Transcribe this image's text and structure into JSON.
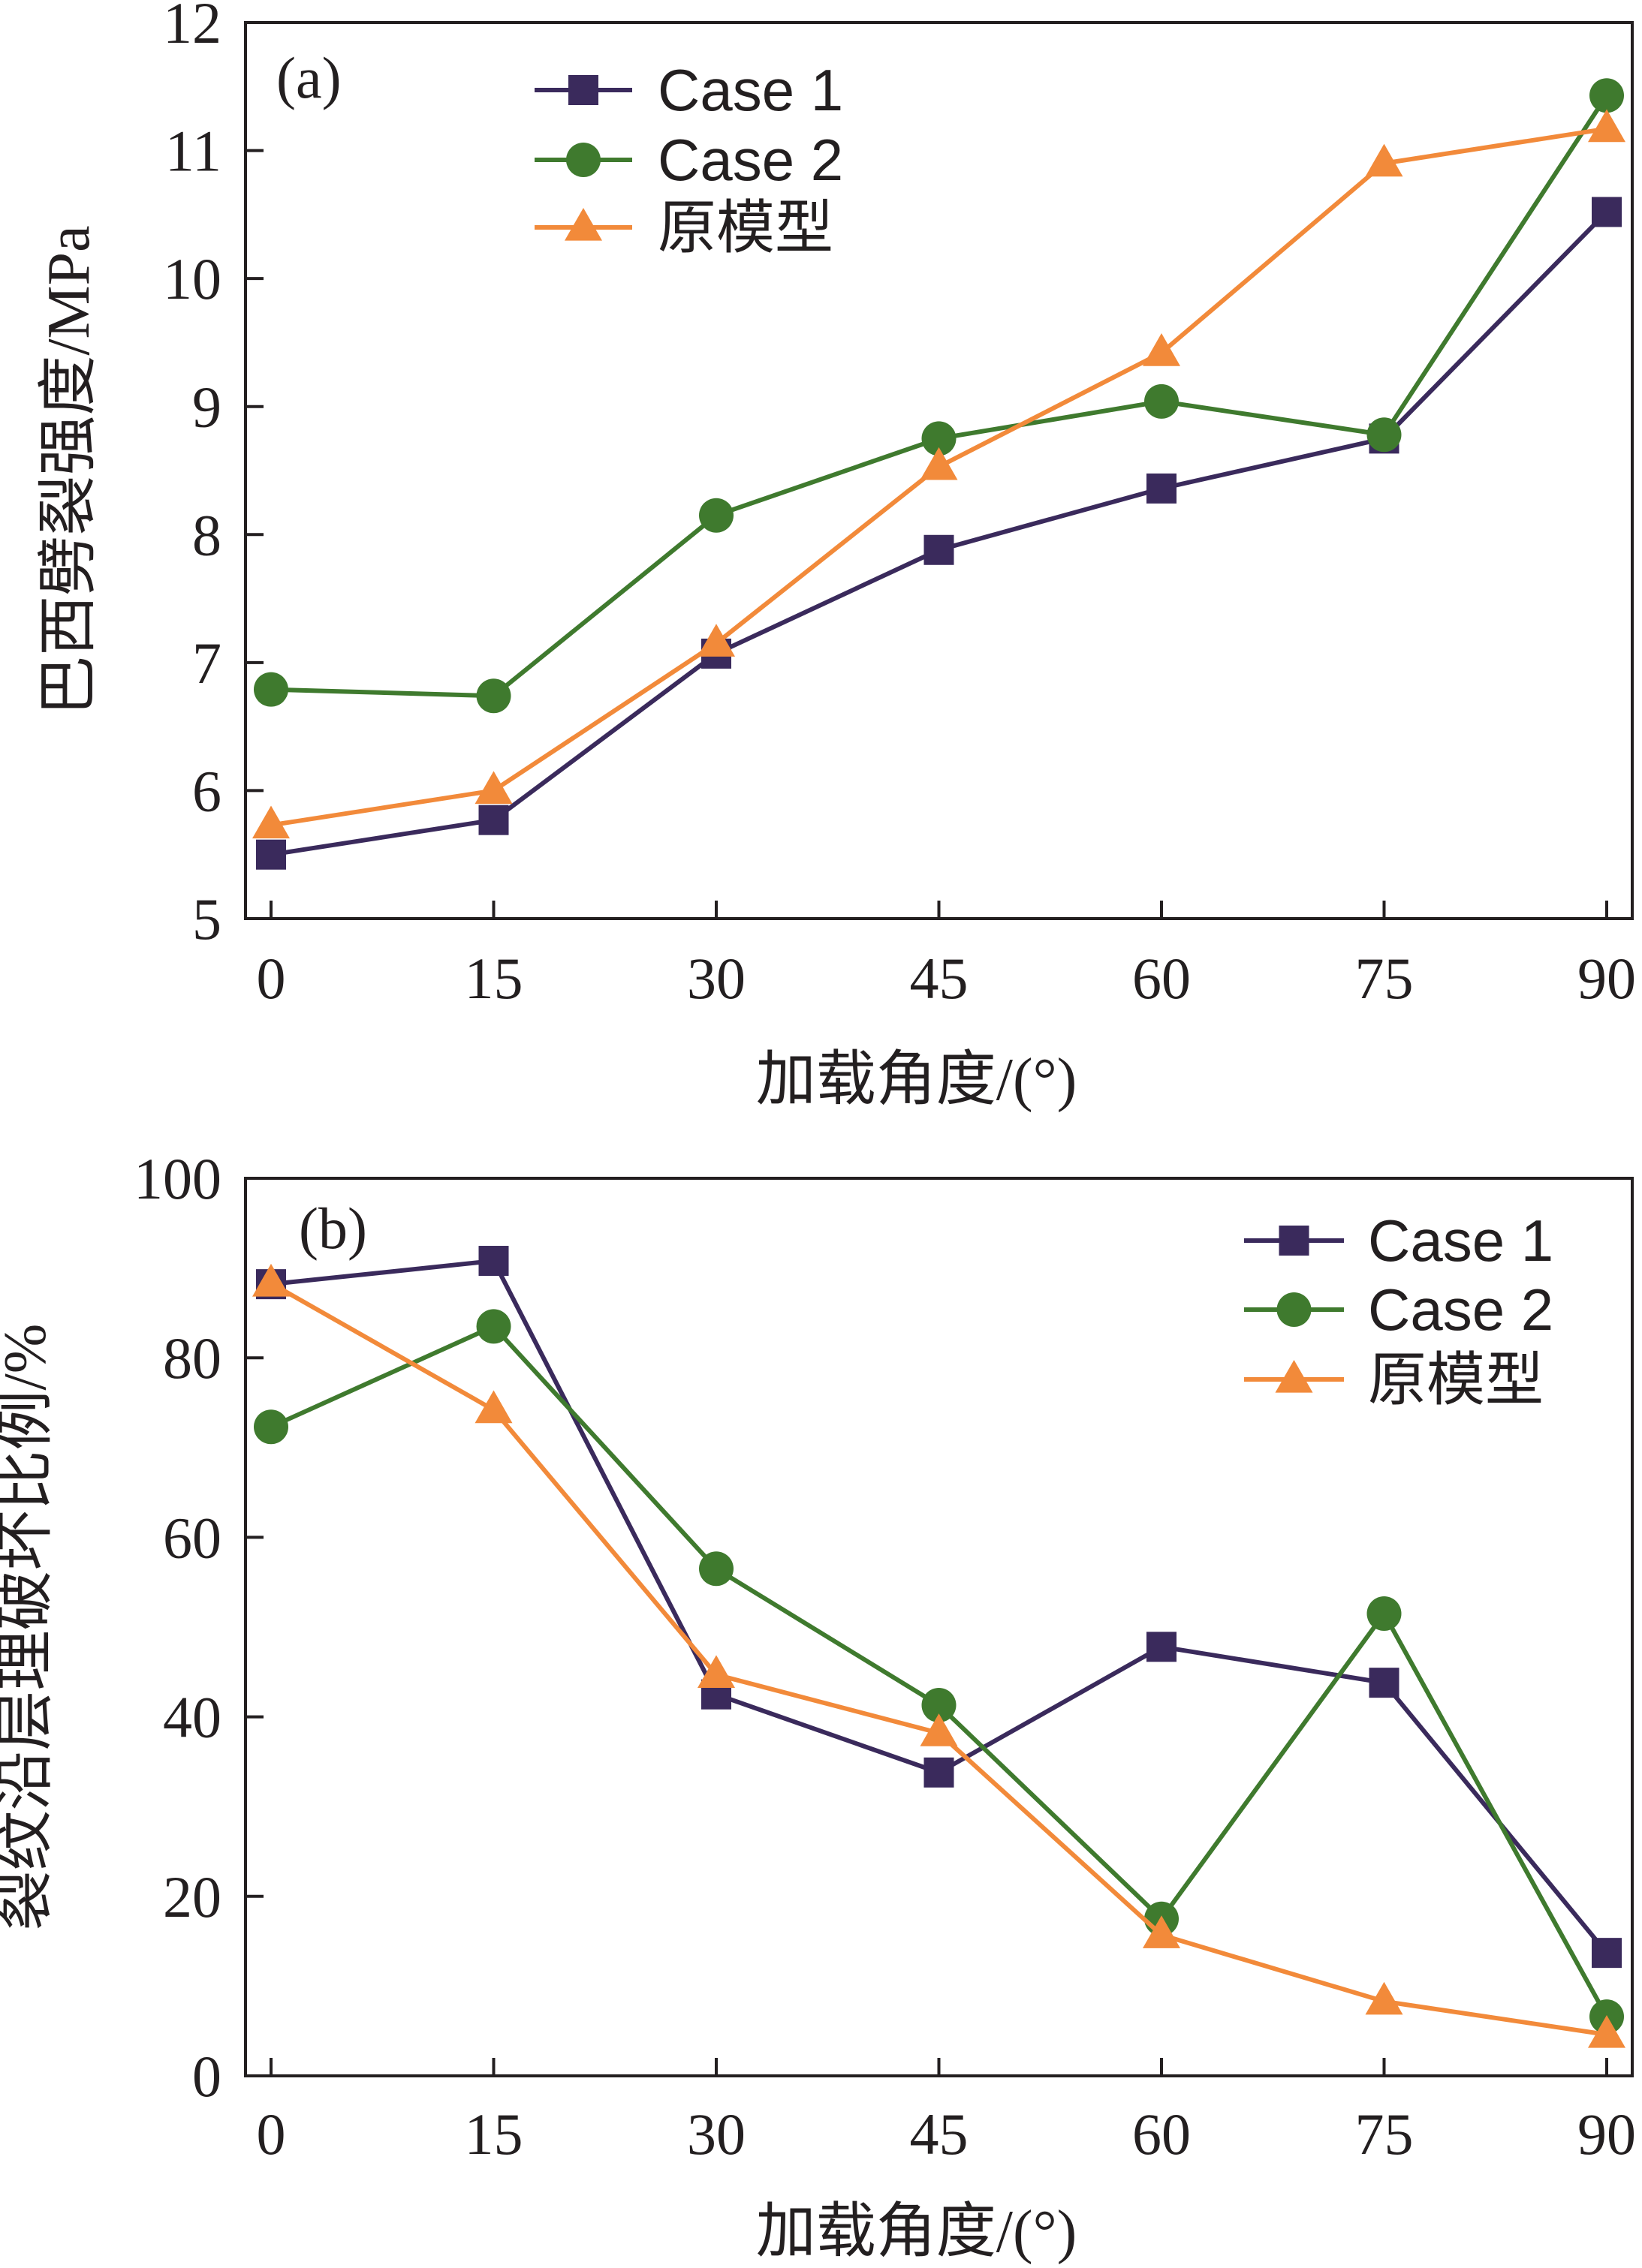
{
  "chart_data": [
    {
      "type": "line",
      "panel_label": "(a)",
      "x": [
        0,
        15,
        30,
        45,
        60,
        75,
        90
      ],
      "xticks": [
        "0",
        "15",
        "30",
        "45",
        "60",
        "75",
        "90"
      ],
      "xlabel": "加载角度/(°)",
      "ylabel": "巴西劈裂强度/MPa",
      "ylim": [
        5,
        12
      ],
      "yticks": [
        "5",
        "6",
        "7",
        "8",
        "9",
        "10",
        "11",
        "12"
      ],
      "ytick_values": [
        5,
        6,
        7,
        8,
        9,
        10,
        11,
        12
      ],
      "legend_position": "top-center",
      "series": [
        {
          "name": "Case 1",
          "marker": "square",
          "color": "#3a2a5c",
          "values": [
            5.5,
            5.77,
            7.07,
            7.88,
            8.36,
            8.75,
            10.52
          ]
        },
        {
          "name": "Case 2",
          "marker": "circle",
          "color": "#3f7a2e",
          "values": [
            6.79,
            6.74,
            8.15,
            8.75,
            9.04,
            8.78,
            11.43
          ]
        },
        {
          "name": "原模型",
          "marker": "triangle",
          "color": "#f28a3a",
          "values": [
            5.73,
            6.0,
            7.15,
            8.53,
            9.42,
            10.9,
            11.17
          ]
        }
      ]
    },
    {
      "type": "line",
      "panel_label": "(b)",
      "x": [
        0,
        15,
        30,
        45,
        60,
        75,
        90
      ],
      "xticks": [
        "0",
        "15",
        "30",
        "45",
        "60",
        "75",
        "90"
      ],
      "xlabel": "加载角度/(°)",
      "ylabel": "裂纹沿层理破坏比例/%",
      "ylim": [
        0,
        100
      ],
      "yticks": [
        "0",
        "20",
        "40",
        "60",
        "80",
        "100"
      ],
      "ytick_values": [
        0,
        20,
        40,
        60,
        80,
        100
      ],
      "legend_position": "top-right",
      "series": [
        {
          "name": "Case 1",
          "marker": "square",
          "color": "#3a2a5c",
          "values": [
            88.2,
            90.8,
            42.5,
            33.8,
            47.8,
            43.8,
            13.7
          ]
        },
        {
          "name": "Case 2",
          "marker": "circle",
          "color": "#3f7a2e",
          "values": [
            72.3,
            83.5,
            56.5,
            41.3,
            17.5,
            51.5,
            6.6
          ]
        },
        {
          "name": "原模型",
          "marker": "triangle",
          "color": "#f28a3a",
          "values": [
            88.3,
            74.2,
            44.7,
            38.2,
            15.7,
            8.3,
            4.6
          ]
        }
      ]
    }
  ]
}
